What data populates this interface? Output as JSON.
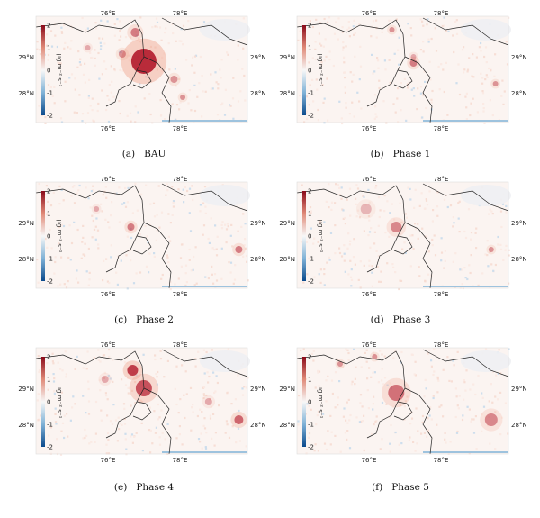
{
  "panels": [
    {
      "id": "a",
      "tag": "(a)",
      "label": "BAU"
    },
    {
      "id": "b",
      "tag": "(b)",
      "label": "Phase 1"
    },
    {
      "id": "c",
      "tag": "(c)",
      "label": "Phase 2"
    },
    {
      "id": "d",
      "tag": "(d)",
      "label": "Phase 3"
    },
    {
      "id": "e",
      "tag": "(e)",
      "label": "Phase 4"
    },
    {
      "id": "f",
      "tag": "(f)",
      "label": "Phase 5"
    }
  ],
  "axes": {
    "lon_ticks": [
      "76°E",
      "78°E"
    ],
    "lat_ticks": [
      "29°N",
      "28°N"
    ]
  },
  "colorbar": {
    "unit": "µg m⁻² s⁻¹",
    "ticks": [
      "2",
      "1",
      "0",
      "-1",
      "-2"
    ],
    "range": [
      -2,
      2
    ],
    "colors": {
      "high": "#8b0a1a",
      "mid": "#f7f7f7",
      "low": "#0b4a8c"
    }
  },
  "colors": {
    "border": "#222222",
    "background": "#fbf4f1",
    "hotspot": "#b2182b",
    "coldspot": "#2166ac"
  }
}
